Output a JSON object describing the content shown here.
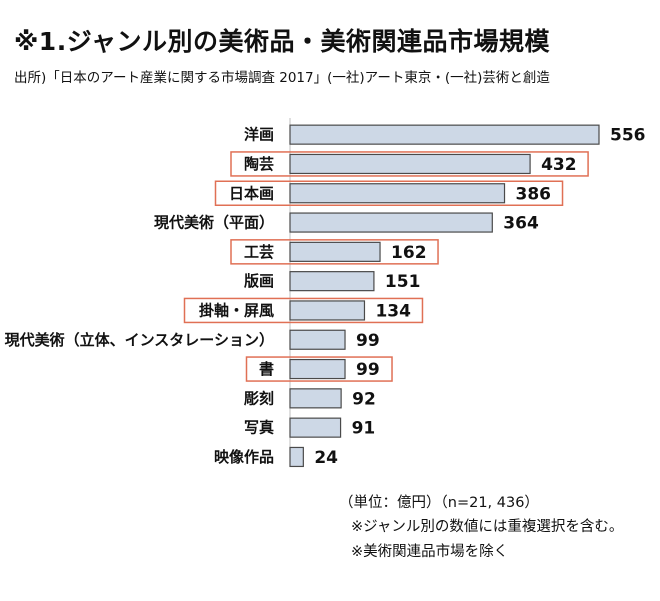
{
  "title": "※1.ジャンル別の美術品・美術関連品市場規模",
  "source": "出所)「日本のアート産業に関する市場調査 2017」(一社)アート東京・(一社)芸術と創造",
  "notes": {
    "unit": "（単位：億円）（n=21, 436）",
    "note1": "※ジャンル別の数値には重複選択を含む。",
    "note2": "※美術関連品市場を除く"
  },
  "colors": {
    "bar_fill": "#cdd8e6",
    "bar_stroke": "#4a4a4a",
    "highlight_box": "#e07055",
    "axis": "#bfbfbf"
  },
  "chart_data": {
    "type": "bar",
    "orientation": "horizontal",
    "categories": [
      "洋画",
      "陶芸",
      "日本画",
      "現代美術（平面）",
      "工芸",
      "版画",
      "掛軸・屏風",
      "現代美術（立体、インスタレーション）",
      "書",
      "彫刻",
      "写真",
      "映像作品"
    ],
    "values": [
      556,
      432,
      386,
      364,
      162,
      151,
      134,
      99,
      99,
      92,
      91,
      24
    ],
    "highlighted": [
      "陶芸",
      "日本画",
      "工芸",
      "掛軸・屏風",
      "書"
    ],
    "xlim": [
      0,
      556
    ],
    "unit": "億円"
  }
}
